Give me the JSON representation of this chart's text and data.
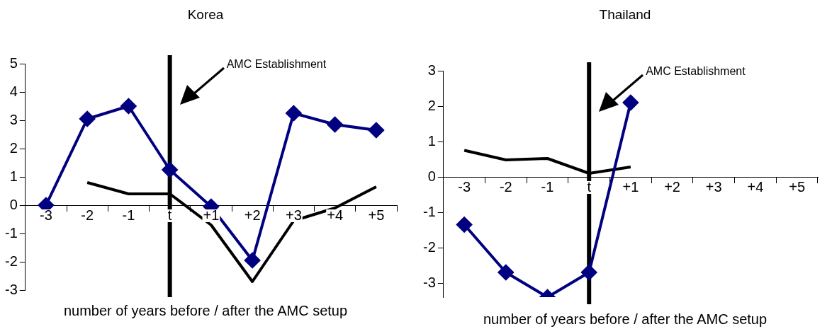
{
  "chart_data": [
    {
      "type": "line",
      "title": "Korea",
      "xlabel": "number of years before / after the AMC setup",
      "categories": [
        "-3",
        "-2",
        "-1",
        "t",
        "+1",
        "+2",
        "+3",
        "+4",
        "+5"
      ],
      "series": [
        {
          "color": "#000080",
          "marker": "diamond",
          "values": [
            0,
            3.05,
            3.5,
            1.25,
            -0.05,
            -1.95,
            3.25,
            2.85,
            2.65
          ]
        },
        {
          "color": "#000000",
          "marker": "none",
          "values": [
            null,
            0.8,
            0.4,
            0.4,
            -0.7,
            -2.7,
            -0.55,
            -0.1,
            0.65
          ]
        }
      ],
      "ylim": [
        -3,
        5
      ],
      "yticks": [
        -3,
        -2,
        -1,
        0,
        1,
        2,
        3,
        4,
        5
      ],
      "grid": false,
      "legend": false,
      "ref_lines": [
        {
          "axis": "x",
          "value": "t",
          "label": "AMC Establishment",
          "color": "#000000"
        }
      ]
    },
    {
      "type": "line",
      "title": "Thailand",
      "xlabel": "number of years before / after the AMC setup",
      "categories": [
        "-3",
        "-2",
        "-1",
        "t",
        "+1",
        "+2",
        "+3",
        "+4",
        "+5"
      ],
      "series": [
        {
          "color": "#000080",
          "marker": "diamond",
          "values": [
            -1.35,
            -2.7,
            -3.4,
            -2.7,
            2.1,
            null,
            null,
            null,
            null
          ]
        },
        {
          "color": "#000000",
          "marker": "none",
          "values": [
            0.75,
            0.48,
            0.52,
            0.1,
            0.28,
            null,
            null,
            null,
            null
          ]
        }
      ],
      "ylim": [
        -3.4,
        3
      ],
      "yticks": [
        -3,
        -2,
        -1,
        0,
        1,
        2,
        3
      ],
      "grid": false,
      "legend": false,
      "ref_lines": [
        {
          "axis": "x",
          "value": "t",
          "label": "AMC Establishment",
          "color": "#000000"
        }
      ]
    }
  ]
}
